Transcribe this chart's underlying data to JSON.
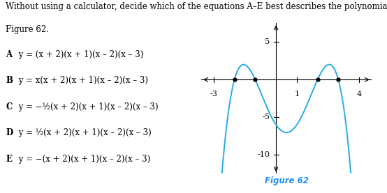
{
  "title": "Figure 62",
  "title_color": "#1E90FF",
  "question_text_line1": "Without using a calculator, decide which of the equations A–E best describes the polynomial in",
  "question_text_line2": "Figure 62.",
  "options": [
    [
      "A",
      " y = (x + 2)(x + 1)(x – 2)(x – 3)"
    ],
    [
      "B",
      " y = x(x + 2)(x + 1)(x – 2)(x – 3)"
    ],
    [
      "C",
      " y = −½(x + 2)(x + 1)(x – 2)(x – 3)"
    ],
    [
      "D",
      " y = ½(x + 2)(x + 1)(x – 2)(x – 3)"
    ],
    [
      "E",
      " y = −(x + 2)(x + 1)(x – 2)(x – 3)"
    ]
  ],
  "curve_color": "#29ABE2",
  "axis_color": "#000000",
  "dot_color": "#000000",
  "roots": [
    -2,
    -1,
    2,
    3
  ],
  "x_ticks_labeled": [
    -3,
    1,
    4
  ],
  "y_ticks_labeled": [
    5,
    -5,
    -10
  ],
  "xlim": [
    -3.6,
    4.6
  ],
  "ylim": [
    -12.5,
    7.5
  ],
  "scale": -0.5,
  "fig_width": 5.54,
  "fig_height": 2.77,
  "dpi": 100,
  "background_color": "#ffffff",
  "font_size_question": 8.5,
  "font_size_options": 8.5,
  "font_size_title": 8.5,
  "font_size_tick": 8
}
